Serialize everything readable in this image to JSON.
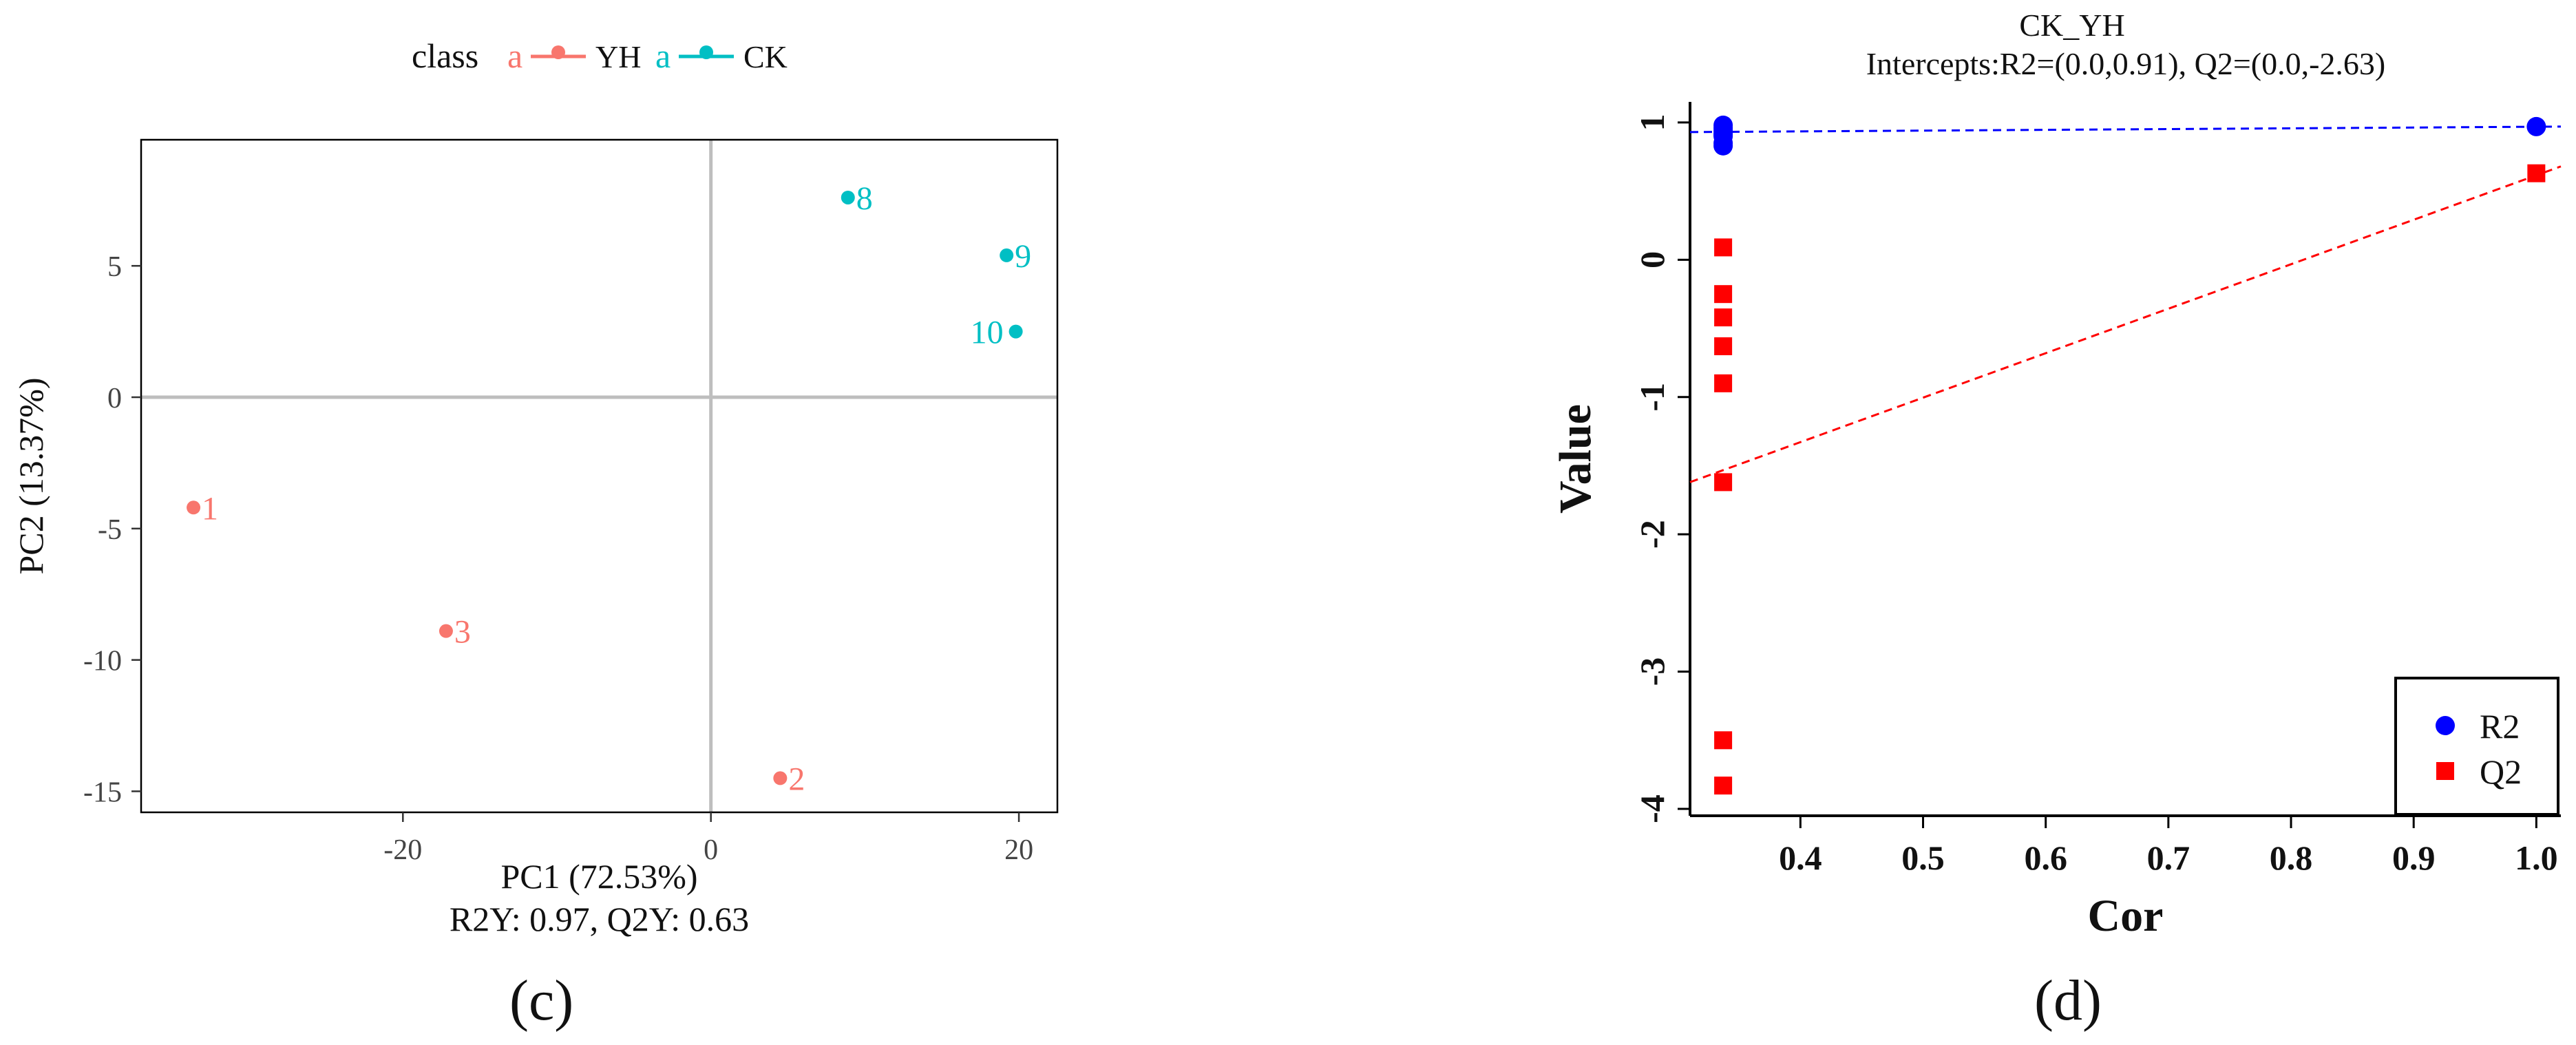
{
  "panel_labels": {
    "left": "(c)",
    "right": "(d)"
  },
  "colors": {
    "yh": "#f8766d",
    "ck": "#00bfc4",
    "r2": "#0000ff",
    "q2": "#ff0000",
    "axis": "#000000",
    "ref_lines": "#bebebe"
  },
  "chart_data": [
    {
      "type": "scatter",
      "legend_title": "class",
      "legend_key_glyph": "a",
      "legend_placement": "top",
      "xlabel": "PC1 (72.53%)",
      "ylabel": "PC2 (13.37%)",
      "caption": "R2Y: 0.97, Q2Y: 0.63",
      "xlim": [
        -37,
        22.5
      ],
      "ylim": [
        -15.8,
        9.8
      ],
      "xticks": [
        -20,
        0,
        20
      ],
      "yticks": [
        -15,
        -10,
        -5,
        0,
        5
      ],
      "reference_lines": {
        "x": 0,
        "y": 0
      },
      "grid": false,
      "series": [
        {
          "name": "YH",
          "color": "#f8766d",
          "points": [
            {
              "label": "1",
              "x": -33.6,
              "y": -4.2
            },
            {
              "label": "3",
              "x": -17.2,
              "y": -8.9
            },
            {
              "label": "2",
              "x": 4.5,
              "y": -14.5
            }
          ]
        },
        {
          "name": "CK",
          "color": "#00bfc4",
          "points": [
            {
              "label": "8",
              "x": 8.9,
              "y": 7.6
            },
            {
              "label": "9",
              "x": 19.2,
              "y": 5.4
            },
            {
              "label": "10",
              "x": 19.8,
              "y": 2.5
            }
          ]
        }
      ]
    },
    {
      "type": "scatter",
      "title": "CK_YH",
      "subtitle": "Intercepts:R2=(0.0,0.91), Q2=(0.0,-2.63)",
      "xlabel": "Cor",
      "ylabel": "Value",
      "xlim": [
        0.31,
        1.02
      ],
      "ylim": [
        -4.05,
        1.15
      ],
      "xticks": [
        0.4,
        0.5,
        0.6,
        0.7,
        0.8,
        0.9,
        1.0
      ],
      "xtick_labels": [
        "0.4",
        "0.5",
        "0.6",
        "0.7",
        "0.8",
        "0.9",
        "1.0"
      ],
      "yticks": [
        -4,
        -3,
        -2,
        -1,
        0,
        1
      ],
      "grid": false,
      "legend_placement": "bottom-right",
      "series": [
        {
          "name": "R2",
          "color": "#0000ff",
          "marker": "circle",
          "x": [
            0.337,
            0.337,
            0.337,
            0.337,
            0.337,
            0.337,
            0.337,
            0.337,
            1.0
          ],
          "y": [
            0.98,
            0.96,
            0.94,
            0.92,
            0.91,
            0.9,
            0.85,
            0.83,
            0.97
          ]
        },
        {
          "name": "Q2",
          "color": "#ff0000",
          "marker": "square",
          "x": [
            0.337,
            0.337,
            0.337,
            0.337,
            0.337,
            0.337,
            0.337,
            0.337,
            1.0
          ],
          "y": [
            0.09,
            -0.25,
            -0.42,
            -0.63,
            -0.9,
            -1.62,
            -3.5,
            -3.83,
            0.63
          ]
        }
      ],
      "regression_lines": [
        {
          "series": "R2",
          "color": "#0000ff",
          "style": "dashed",
          "from": [
            0.31,
            0.93
          ],
          "to": [
            1.02,
            0.97
          ]
        },
        {
          "series": "Q2",
          "color": "#ff0000",
          "style": "dashed",
          "from": [
            0.31,
            -1.62
          ],
          "to": [
            1.02,
            0.68
          ]
        }
      ]
    }
  ]
}
